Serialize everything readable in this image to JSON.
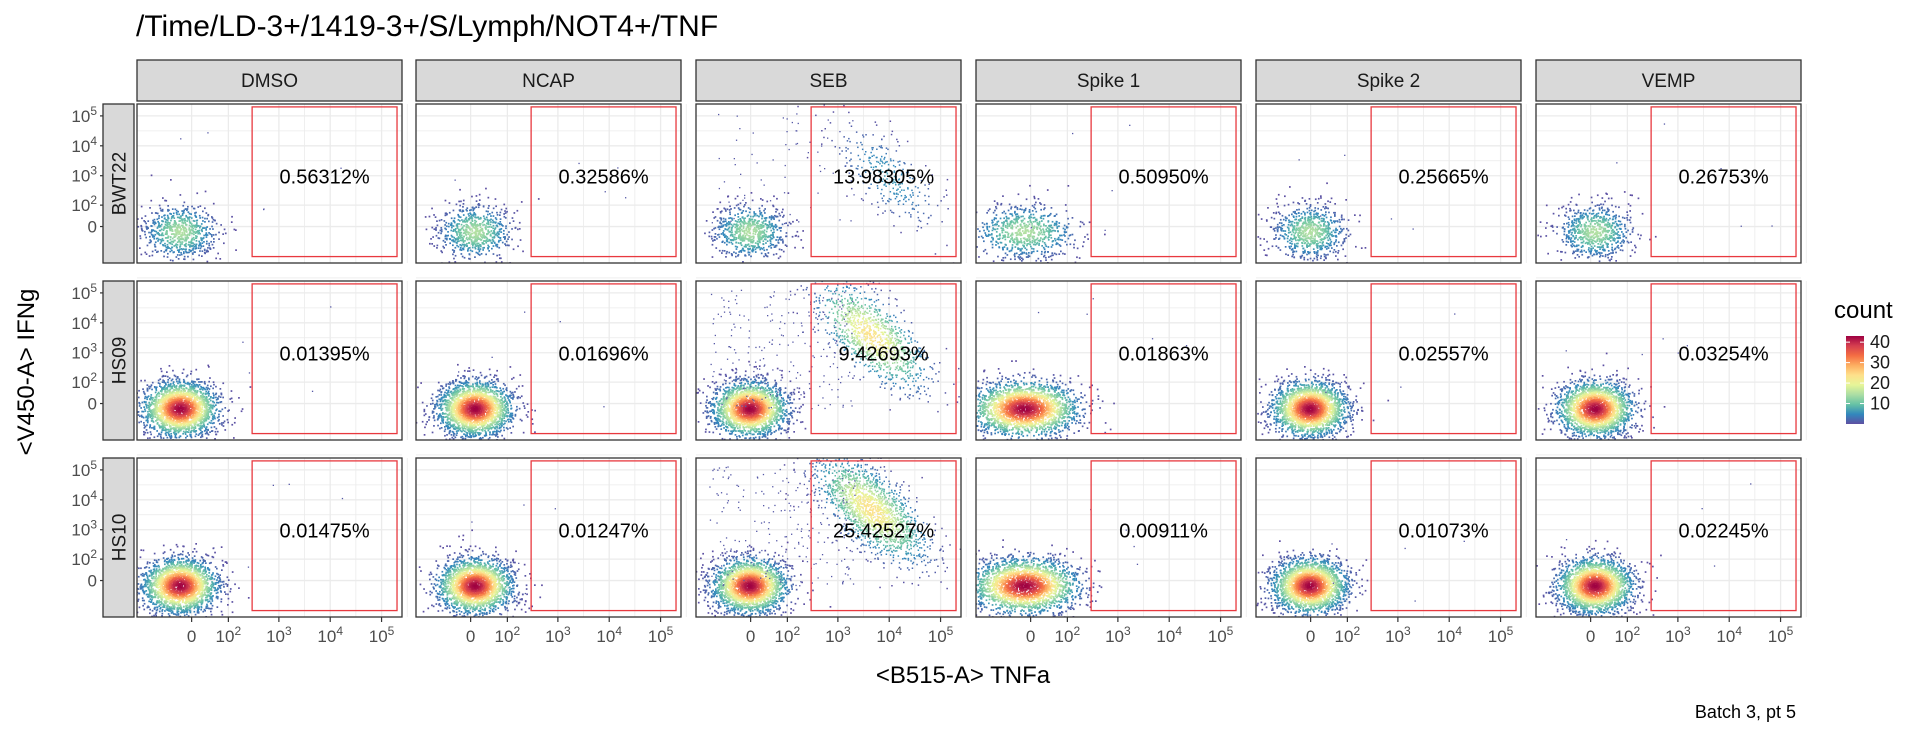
{
  "title": "/Time/LD-3+/1419-3+/S/Lymph/NOT4+/TNF",
  "caption": "Batch 3, pt 5",
  "colors": {
    "gate": "#e8393f",
    "strip_bg": "#d9d9d9",
    "panel_border": "#333333",
    "grid": "#ebebeb",
    "palette": [
      "#5e4fa2",
      "#3288bd",
      "#66c2a5",
      "#abdda4",
      "#e6f598",
      "#fee08b",
      "#fdae61",
      "#f46d43",
      "#d53e4f",
      "#9e0142"
    ]
  },
  "chart_data": {
    "type": "heatmap",
    "subtype": "flow-cytometry density facet grid",
    "title": "/Time/LD-3+/1419-3+/S/Lymph/NOT4+/TNF",
    "xlabel": "<B515-A> TNFa",
    "ylabel": "<V450-A> IFNg",
    "x_scale": "biexponential",
    "y_scale": "biexponential",
    "x_ticks": [
      {
        "value": 0,
        "base": "0",
        "exp": ""
      },
      {
        "value": 100,
        "base": "10",
        "exp": "2"
      },
      {
        "value": 1000,
        "base": "10",
        "exp": "3"
      },
      {
        "value": 10000,
        "base": "10",
        "exp": "4"
      },
      {
        "value": 100000,
        "base": "10",
        "exp": "5"
      }
    ],
    "y_ticks": [
      {
        "value": 0,
        "base": "0",
        "exp": ""
      },
      {
        "value": 100,
        "base": "10",
        "exp": "2"
      },
      {
        "value": 1000,
        "base": "10",
        "exp": "3"
      },
      {
        "value": 10000,
        "base": "10",
        "exp": "4"
      },
      {
        "value": 100000,
        "base": "10",
        "exp": "5"
      }
    ],
    "columns": [
      "DMSO",
      "NCAP",
      "SEB",
      "Spike 1",
      "Spike 2",
      "VEMP"
    ],
    "rows": [
      "BWT22",
      "HS09",
      "HS10"
    ],
    "gate": {
      "x_min": 300,
      "x_max": 200000,
      "y_min": -200,
      "y_max": 200000
    },
    "gate_percent": [
      [
        "0.56312%",
        "0.32586%",
        "13.98305%",
        "0.50950%",
        "0.25665%",
        "0.26753%"
      ],
      [
        "0.01395%",
        "0.01696%",
        "9.42693%",
        "0.01863%",
        "0.02557%",
        "0.03254%"
      ],
      [
        "0.01475%",
        "0.01247%",
        "25.42527%",
        "0.00911%",
        "0.01073%",
        "0.02245%"
      ]
    ],
    "legend": {
      "title": "count",
      "position": "right",
      "ticks": [
        10,
        20,
        30,
        40
      ],
      "range": [
        0,
        43
      ]
    }
  }
}
